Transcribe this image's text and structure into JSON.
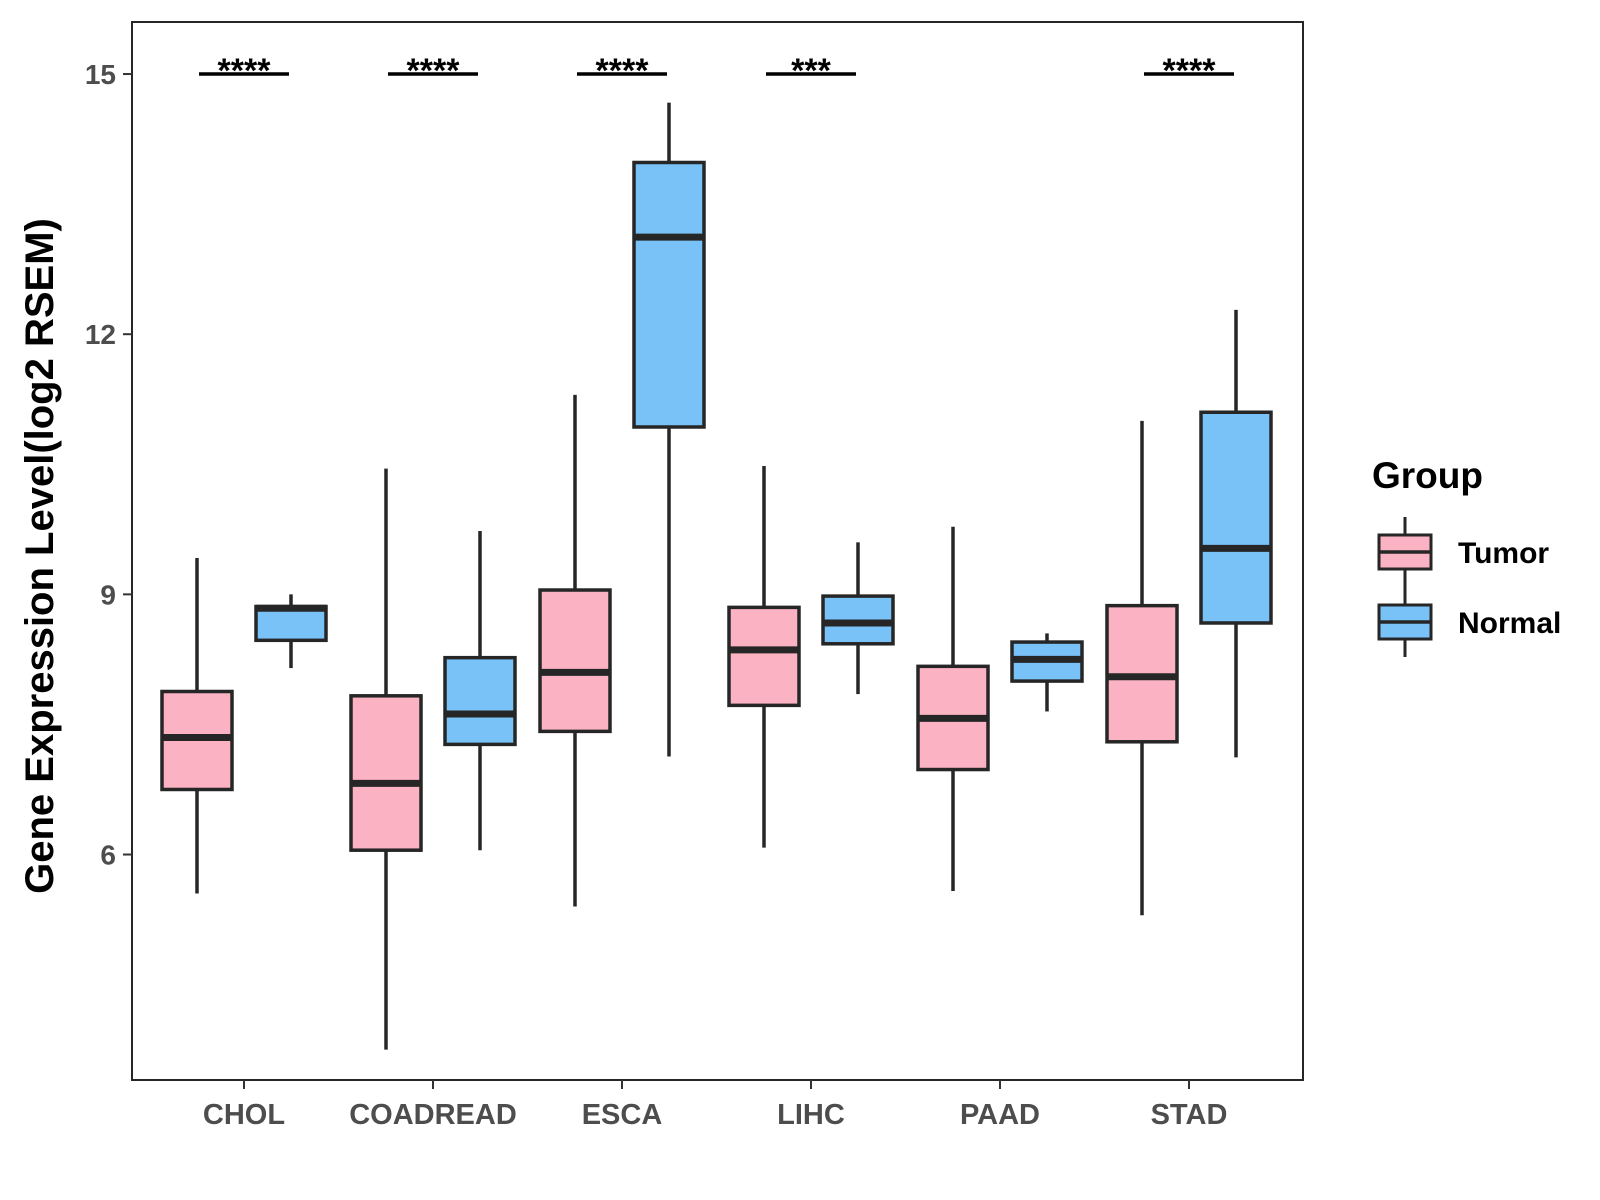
{
  "chart_data": {
    "type": "boxplot",
    "title": "",
    "xlabel": "",
    "ylabel": "Gene Expression Level(log2 RSEM)",
    "ylim": [
      3.4,
      15.6
    ],
    "yticks": [
      6,
      9,
      12,
      15
    ],
    "categories": [
      "CHOL",
      "COADREAD",
      "ESCA",
      "LIHC",
      "PAAD",
      "STAD"
    ],
    "legend": {
      "title": "Group",
      "position": "right",
      "entries": [
        "Tumor",
        "Normal"
      ]
    },
    "colors": {
      "Tumor": "#FBB2C3",
      "Normal": "#79C2F8",
      "outline": "#262626"
    },
    "series": [
      {
        "name": "Tumor",
        "boxes": [
          {
            "min": 5.55,
            "q1": 6.75,
            "median": 7.35,
            "q3": 7.88,
            "max": 9.42
          },
          {
            "min": 3.75,
            "q1": 6.05,
            "median": 6.82,
            "q3": 7.83,
            "max": 10.45
          },
          {
            "min": 5.4,
            "q1": 7.42,
            "median": 8.1,
            "q3": 9.05,
            "max": 11.3
          },
          {
            "min": 6.08,
            "q1": 7.72,
            "median": 8.36,
            "q3": 8.85,
            "max": 10.48
          },
          {
            "min": 5.58,
            "q1": 6.98,
            "median": 7.57,
            "q3": 8.17,
            "max": 9.78
          },
          {
            "min": 5.3,
            "q1": 7.3,
            "median": 8.05,
            "q3": 8.87,
            "max": 11.0
          }
        ]
      },
      {
        "name": "Normal",
        "boxes": [
          {
            "min": 8.15,
            "q1": 8.47,
            "median": 8.84,
            "q3": 8.86,
            "max": 9.0
          },
          {
            "min": 6.05,
            "q1": 7.27,
            "median": 7.62,
            "q3": 8.27,
            "max": 9.73
          },
          {
            "min": 7.13,
            "q1": 10.93,
            "median": 13.12,
            "q3": 13.98,
            "max": 14.67
          },
          {
            "min": 7.85,
            "q1": 8.43,
            "median": 8.67,
            "q3": 8.98,
            "max": 9.6
          },
          {
            "min": 7.65,
            "q1": 8.0,
            "median": 8.25,
            "q3": 8.45,
            "max": 8.55
          },
          {
            "min": 7.12,
            "q1": 8.67,
            "median": 9.53,
            "q3": 11.1,
            "max": 12.28
          }
        ]
      }
    ],
    "significance": [
      {
        "category": "CHOL",
        "label": "****",
        "y": 15.0
      },
      {
        "category": "COADREAD",
        "label": "****",
        "y": 15.0
      },
      {
        "category": "ESCA",
        "label": "****",
        "y": 15.0
      },
      {
        "category": "LIHC",
        "label": "***",
        "y": 15.0
      },
      {
        "category": "STAD",
        "label": "****",
        "y": 15.0
      }
    ]
  }
}
